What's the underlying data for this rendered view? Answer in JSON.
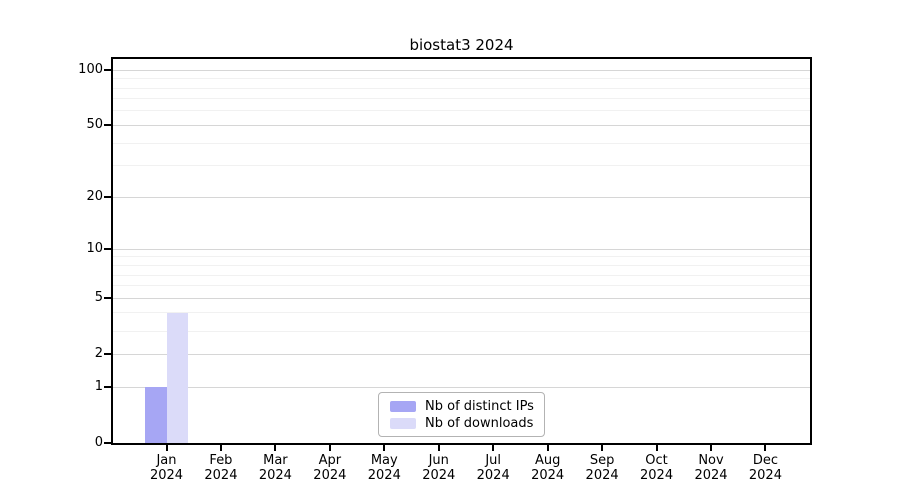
{
  "chart_data": {
    "type": "bar",
    "title": "biostat3 2024",
    "categories": [
      "Jan",
      "Feb",
      "Mar",
      "Apr",
      "May",
      "Jun",
      "Jul",
      "Aug",
      "Sep",
      "Oct",
      "Nov",
      "Dec"
    ],
    "year_label": "2024",
    "series": [
      {
        "name": "Nb of distinct IPs",
        "color": "#a6a6f4",
        "values": [
          1,
          0,
          0,
          0,
          0,
          0,
          0,
          0,
          0,
          0,
          0,
          0
        ]
      },
      {
        "name": "Nb of downloads",
        "color": "#dbdbf9",
        "values": [
          4,
          0,
          0,
          0,
          0,
          0,
          0,
          0,
          0,
          0,
          0,
          0
        ]
      }
    ],
    "yscale": "log1p",
    "yticks": [
      0,
      1,
      2,
      5,
      10,
      20,
      50,
      100
    ],
    "minor_yticks": [
      3,
      4,
      6,
      7,
      8,
      9,
      30,
      40,
      60,
      70,
      80,
      90
    ],
    "ylim": [
      0,
      115
    ],
    "xlabel": "",
    "ylabel": "",
    "grid": "horizontal",
    "legend_position": "lower center"
  },
  "colors": {
    "axis": "#000000",
    "major_grid": "#d6d6d6",
    "minor_grid": "#f1f1f1",
    "legend_border": "#b3b3b3"
  }
}
